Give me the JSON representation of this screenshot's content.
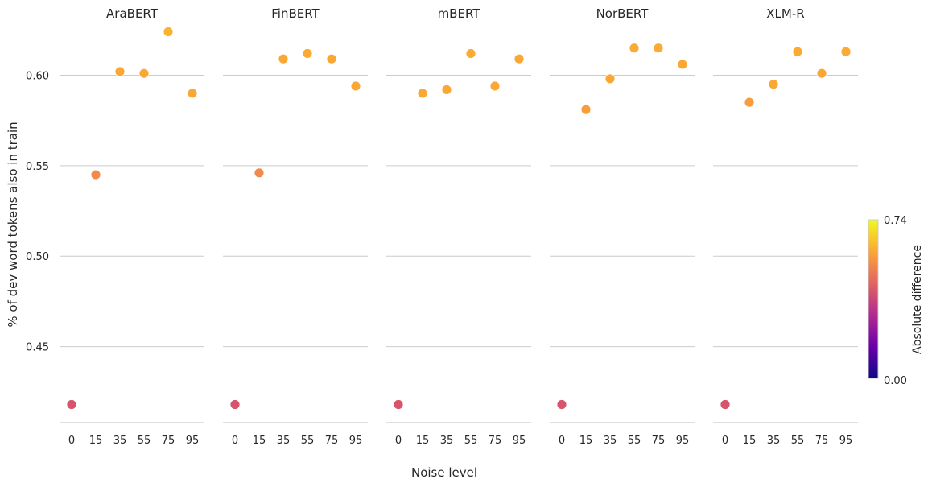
{
  "chart_data": {
    "type": "scatter",
    "xlabel": "Noise level",
    "ylabel": "% of dev word tokens also in train",
    "x_categories": [
      "0",
      "15",
      "35",
      "55",
      "75",
      "95"
    ],
    "yticks": [
      0.45,
      0.5,
      0.55,
      0.6
    ],
    "ytick_labels": [
      "0.45",
      "0.50",
      "0.55",
      "0.60"
    ],
    "ylim": [
      0.408,
      0.626
    ],
    "grid": "horizontal",
    "colorbar": {
      "label": "Absolute  difference",
      "min_label": "0.00",
      "max_label": "0.74",
      "colormap": "plasma",
      "stops": [
        "#0d0887",
        "#6a00a8",
        "#b12a90",
        "#e16462",
        "#fca636",
        "#f0f921"
      ]
    },
    "panels": [
      {
        "title": "AraBERT",
        "points": [
          {
            "x": "0",
            "y": 0.418,
            "color": "#d6556d"
          },
          {
            "x": "15",
            "y": 0.545,
            "color": "#f3894b"
          },
          {
            "x": "35",
            "y": 0.602,
            "color": "#fba734"
          },
          {
            "x": "55",
            "y": 0.601,
            "color": "#fba734"
          },
          {
            "x": "75",
            "y": 0.624,
            "color": "#fbb32f"
          },
          {
            "x": "95",
            "y": 0.59,
            "color": "#fba734"
          }
        ]
      },
      {
        "title": "FinBERT",
        "points": [
          {
            "x": "0",
            "y": 0.418,
            "color": "#d6556d"
          },
          {
            "x": "15",
            "y": 0.546,
            "color": "#f3894b"
          },
          {
            "x": "35",
            "y": 0.609,
            "color": "#fba734"
          },
          {
            "x": "55",
            "y": 0.612,
            "color": "#fbaa33"
          },
          {
            "x": "75",
            "y": 0.609,
            "color": "#fba734"
          },
          {
            "x": "95",
            "y": 0.594,
            "color": "#fba734"
          }
        ]
      },
      {
        "title": "mBERT",
        "points": [
          {
            "x": "0",
            "y": 0.418,
            "color": "#d6556d"
          },
          {
            "x": "15",
            "y": 0.59,
            "color": "#fba734"
          },
          {
            "x": "35",
            "y": 0.592,
            "color": "#fba734"
          },
          {
            "x": "55",
            "y": 0.612,
            "color": "#fbaa33"
          },
          {
            "x": "75",
            "y": 0.594,
            "color": "#fba734"
          },
          {
            "x": "95",
            "y": 0.609,
            "color": "#fba734"
          }
        ]
      },
      {
        "title": "NorBERT",
        "points": [
          {
            "x": "0",
            "y": 0.418,
            "color": "#d6556d"
          },
          {
            "x": "15",
            "y": 0.581,
            "color": "#f99d3b"
          },
          {
            "x": "35",
            "y": 0.598,
            "color": "#fba734"
          },
          {
            "x": "55",
            "y": 0.615,
            "color": "#fbaa33"
          },
          {
            "x": "75",
            "y": 0.615,
            "color": "#fbaa33"
          },
          {
            "x": "95",
            "y": 0.606,
            "color": "#fba734"
          }
        ]
      },
      {
        "title": "XLM-R",
        "points": [
          {
            "x": "0",
            "y": 0.418,
            "color": "#d6556d"
          },
          {
            "x": "15",
            "y": 0.585,
            "color": "#f99d3b"
          },
          {
            "x": "35",
            "y": 0.595,
            "color": "#fba734"
          },
          {
            "x": "55",
            "y": 0.613,
            "color": "#fbaa33"
          },
          {
            "x": "75",
            "y": 0.601,
            "color": "#fba734"
          },
          {
            "x": "95",
            "y": 0.613,
            "color": "#fbaa33"
          }
        ]
      }
    ]
  }
}
